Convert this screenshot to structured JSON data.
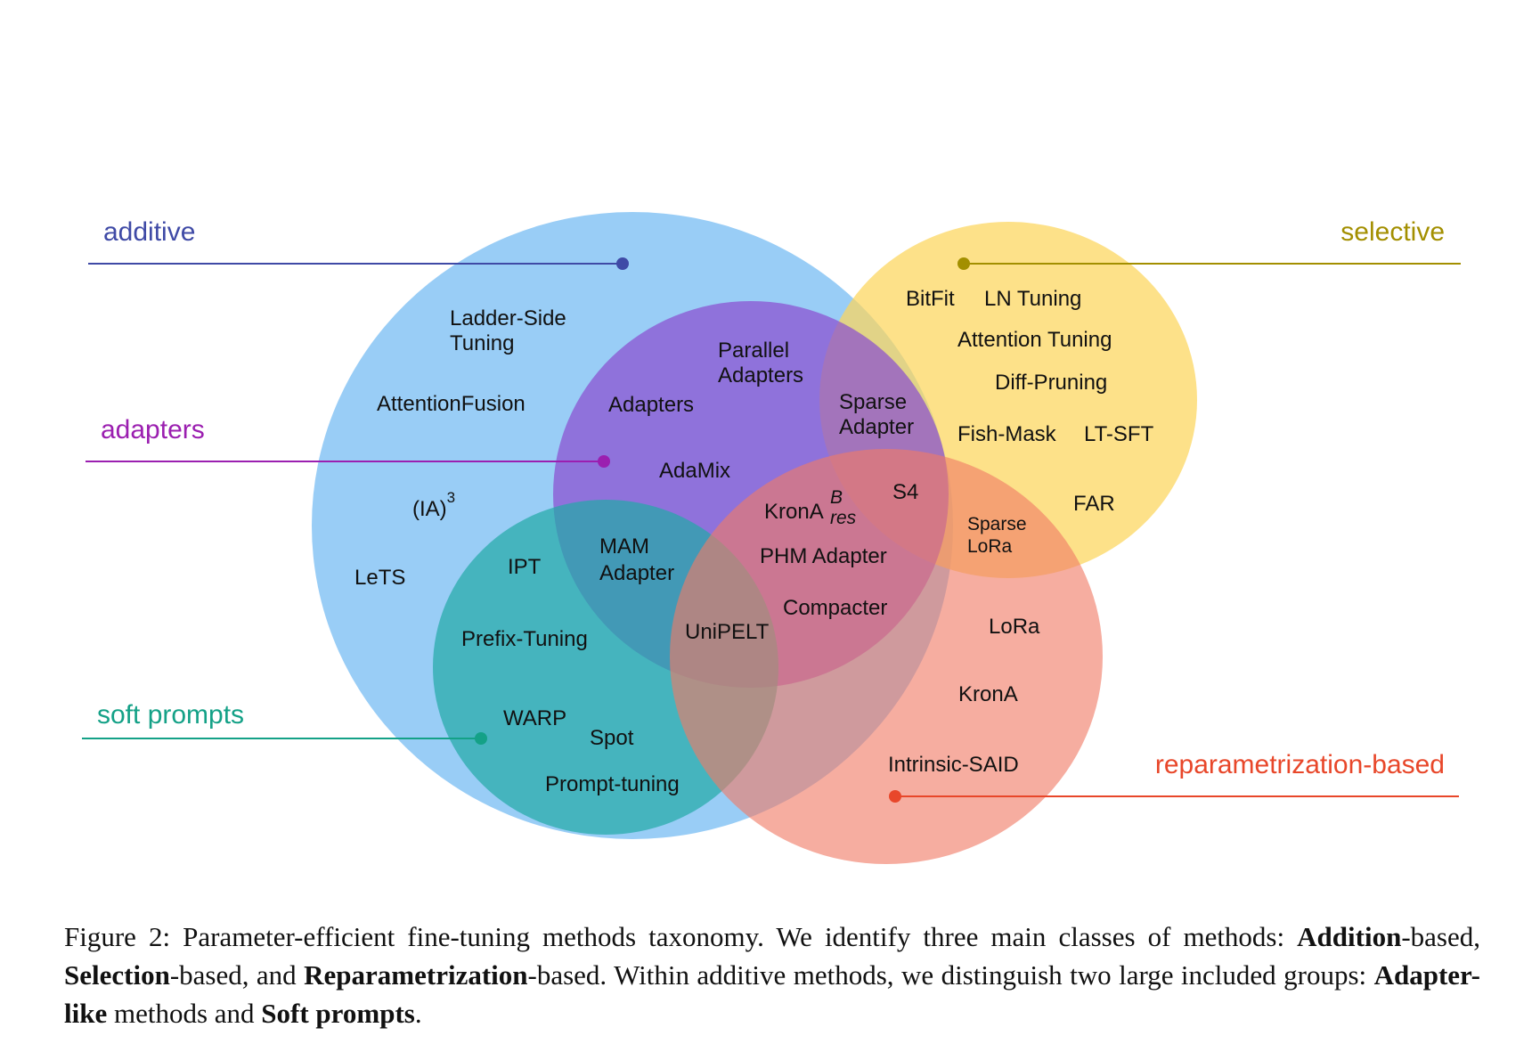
{
  "diagram": {
    "colors": {
      "additive": "#5aaef0",
      "adapters": "#8a4fd0",
      "soft_prompts": "#21a9a6",
      "selective": "#fcd55c",
      "reparametrization": "#f07a65",
      "additive_label": "#3f4aa6",
      "adapters_label": "#9b1fb0",
      "soft_prompts_label": "#14a187",
      "selective_label": "#a38f00",
      "reparametrization_label": "#e8472a"
    },
    "categories": {
      "additive": "additive",
      "adapters": "adapters",
      "soft_prompts": "soft prompts",
      "selective": "selective",
      "reparametrization": "reparametrization-based"
    },
    "methods": {
      "ladder_side_1": "Ladder-Side",
      "ladder_side_2": "Tuning",
      "attention_fusion": "AttentionFusion",
      "ia3_base": "(IA)",
      "ia3_sup": "3",
      "lets": "LeTS",
      "parallel_1": "Parallel",
      "parallel_2": "Adapters",
      "adapters": "Adapters",
      "adamix": "AdaMix",
      "sparse_adapter_1": "Sparse",
      "sparse_adapter_2": "Adapter",
      "s4": "S4",
      "krona_res_base": "KronA",
      "krona_res_sup": "B",
      "krona_res_sub": "res",
      "phm_adapter": "PHM Adapter",
      "compacter": "Compacter",
      "mam_1": "MAM",
      "mam_2": "Adapter",
      "unipelt": "UniPELT",
      "ipt": "IPT",
      "prefix_tuning": "Prefix-Tuning",
      "warp": "WARP",
      "spot": "Spot",
      "prompt_tuning": "Prompt-tuning",
      "bitfit": "BitFit",
      "ln_tuning": "LN Tuning",
      "attention_tuning": "Attention Tuning",
      "diff_pruning": "Diff-Pruning",
      "fish_mask": "Fish-Mask",
      "lt_sft": "LT-SFT",
      "far": "FAR",
      "sparse_lora_1": "Sparse",
      "sparse_lora_2": "LoRa",
      "lora": "LoRa",
      "krona": "KronA",
      "intrinsic_said": "Intrinsic-SAID"
    }
  },
  "caption": {
    "t1": "Figure 2: Parameter-efficient fine-tuning methods taxonomy. We identify three main classes of methods: ",
    "b1": "Addition",
    "t2": "-based, ",
    "b2": "Selection",
    "t3": "-based, and ",
    "b3": "Reparametrization",
    "t4": "-based. Within additive methods, we distinguish two large included groups: ",
    "b4": "Adapter-like",
    "t5": " methods and ",
    "b5": "Soft prompts",
    "t6": "."
  }
}
